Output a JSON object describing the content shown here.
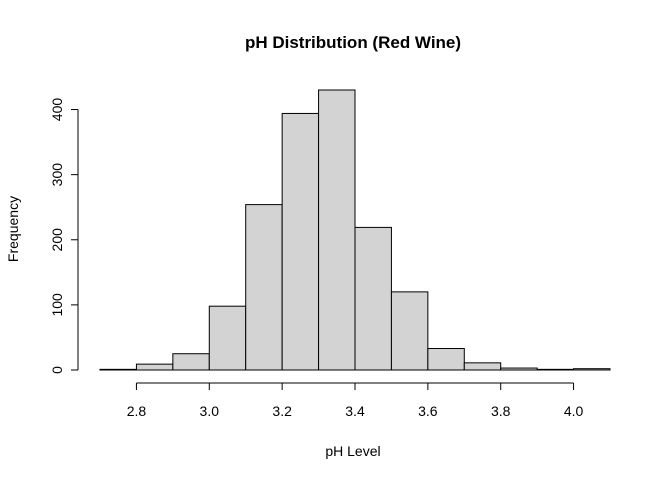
{
  "chart_data": {
    "type": "histogram",
    "title": "pH Distribution (Red Wine)",
    "xlabel": "pH Level",
    "ylabel": "Frequency",
    "bins": [
      {
        "start": 2.7,
        "end": 2.8,
        "count": 1
      },
      {
        "start": 2.8,
        "end": 2.9,
        "count": 9
      },
      {
        "start": 2.9,
        "end": 3.0,
        "count": 25
      },
      {
        "start": 3.0,
        "end": 3.1,
        "count": 98
      },
      {
        "start": 3.1,
        "end": 3.2,
        "count": 254
      },
      {
        "start": 3.2,
        "end": 3.3,
        "count": 394
      },
      {
        "start": 3.3,
        "end": 3.4,
        "count": 430
      },
      {
        "start": 3.4,
        "end": 3.5,
        "count": 219
      },
      {
        "start": 3.5,
        "end": 3.6,
        "count": 120
      },
      {
        "start": 3.6,
        "end": 3.7,
        "count": 33
      },
      {
        "start": 3.7,
        "end": 3.8,
        "count": 11
      },
      {
        "start": 3.8,
        "end": 3.9,
        "count": 3
      },
      {
        "start": 3.9,
        "end": 4.0,
        "count": 1
      },
      {
        "start": 4.0,
        "end": 4.1,
        "count": 2
      }
    ],
    "xlim": [
      2.7,
      4.1
    ],
    "ylim": [
      0,
      430
    ],
    "x_ticks": [
      2.8,
      3.0,
      3.2,
      3.4,
      3.6,
      3.8,
      4.0
    ],
    "x_tick_labels": [
      "2.8",
      "3.0",
      "3.2",
      "3.4",
      "3.6",
      "3.8",
      "4.0"
    ],
    "y_ticks": [
      0,
      100,
      200,
      300,
      400
    ],
    "y_tick_labels": [
      "0",
      "100",
      "200",
      "300",
      "400"
    ],
    "bar_fill": "#d3d3d3",
    "bar_stroke": "#000000",
    "grid": false
  }
}
